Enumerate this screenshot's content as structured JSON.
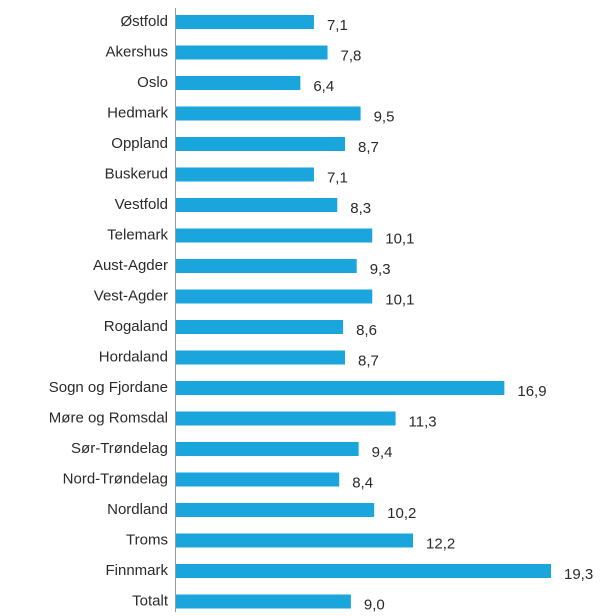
{
  "chart_data": {
    "type": "bar",
    "orientation": "horizontal",
    "categories": [
      "Østfold",
      "Akershus",
      "Oslo",
      "Hedmark",
      "Oppland",
      "Buskerud",
      "Vestfold",
      "Telemark",
      "Aust-Agder",
      "Vest-Agder",
      "Rogaland",
      "Hordaland",
      "Sogn og Fjordane",
      "Møre og Romsdal",
      "Sør-Trøndelag",
      "Nord-Trøndelag",
      "Nordland",
      "Troms",
      "Finnmark",
      "Totalt"
    ],
    "values": [
      7.1,
      7.8,
      6.4,
      9.5,
      8.7,
      7.1,
      8.3,
      10.1,
      9.3,
      10.1,
      8.6,
      8.7,
      16.9,
      11.3,
      9.4,
      8.4,
      10.2,
      12.2,
      19.3,
      9.0
    ],
    "value_labels": [
      "7,1",
      "7,8",
      "6,4",
      "9,5",
      "8,7",
      "7,1",
      "8,3",
      "10,1",
      "9,3",
      "10,1",
      "8,6",
      "8,7",
      "16,9",
      "11,3",
      "9,4",
      "8,4",
      "10,2",
      "12,2",
      "19,3",
      "9,0"
    ],
    "color": "#1aa5dc"
  }
}
